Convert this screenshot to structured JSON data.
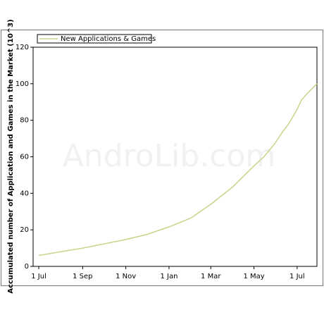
{
  "chart_data": {
    "type": "line",
    "y_label": "Accumulated number of Application and Games in the Market (10^3)",
    "watermark": "AndroLib.com",
    "x": [
      0,
      31,
      62,
      92,
      123,
      153,
      184,
      215,
      243,
      274,
      304,
      318,
      333,
      345,
      353,
      365,
      371,
      380,
      393
    ],
    "series": [
      {
        "name": "New Applications & Games",
        "color": "#c8d48a",
        "values": [
          6,
          8,
          10,
          12.3,
          14.7,
          17.5,
          21.6,
          26.5,
          34,
          43.5,
          55,
          60,
          67,
          74,
          78,
          86,
          91,
          95,
          100
        ]
      }
    ],
    "xlim": [
      -8,
      393
    ],
    "xticks": [
      {
        "value": 0,
        "label": "1 Jul"
      },
      {
        "value": 62,
        "label": "1 Sep"
      },
      {
        "value": 123,
        "label": "1 Nov"
      },
      {
        "value": 184,
        "label": "1 Jan"
      },
      {
        "value": 243,
        "label": "1 Mar"
      },
      {
        "value": 304,
        "label": "1 May"
      },
      {
        "value": 365,
        "label": "1 Jul"
      }
    ],
    "ylim": [
      0,
      120
    ],
    "yticks": [
      0,
      20,
      40,
      60,
      80,
      100,
      120
    ],
    "legend": "top-left"
  }
}
